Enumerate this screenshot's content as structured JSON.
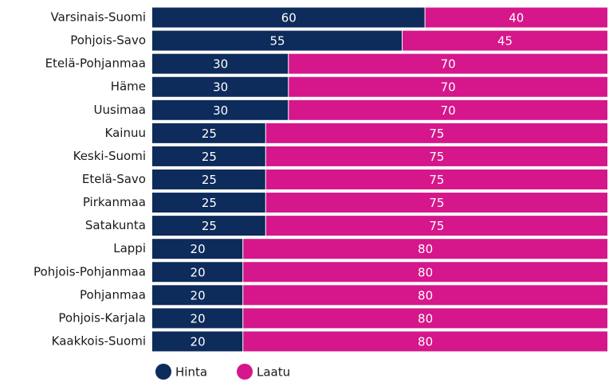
{
  "chart_data": {
    "type": "bar",
    "orientation": "horizontal",
    "stacked": true,
    "categories": [
      "Varsinais-Suomi",
      "Pohjois-Savo",
      "Etelä-Pohjanmaa",
      "Häme",
      "Uusimaa",
      "Kainuu",
      "Keski-Suomi",
      "Etelä-Savo",
      "Pirkanmaa",
      "Satakunta",
      "Lappi",
      "Pohjois-Pohjanmaa",
      "Pohjanmaa",
      "Pohjois-Karjala",
      "Kaakkois-Suomi"
    ],
    "series": [
      {
        "name": "Hinta",
        "color": "#0d2b5b",
        "values": [
          60,
          55,
          30,
          30,
          30,
          25,
          25,
          25,
          25,
          25,
          20,
          20,
          20,
          20,
          20
        ]
      },
      {
        "name": "Laatu",
        "color": "#d6168b",
        "values": [
          40,
          45,
          70,
          70,
          70,
          75,
          75,
          75,
          75,
          75,
          80,
          80,
          80,
          80,
          80
        ]
      }
    ],
    "xlim": [
      0,
      100
    ],
    "legend": "bottom"
  }
}
